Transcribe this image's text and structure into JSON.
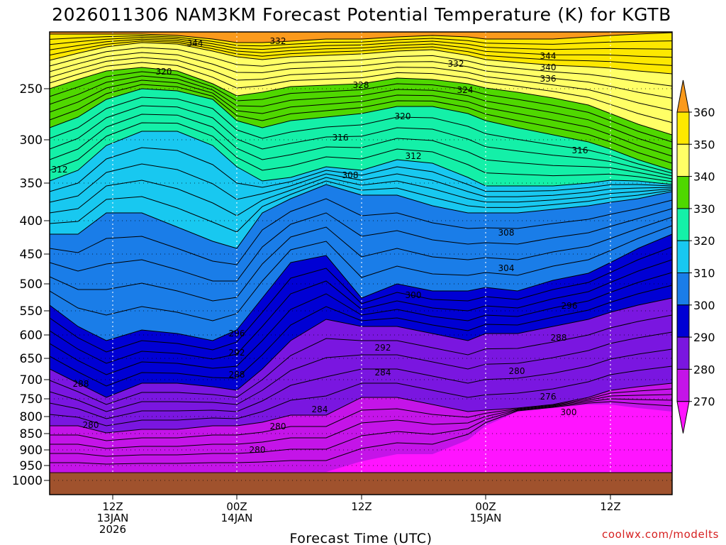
{
  "chart_data": {
    "type": "contour",
    "title": "2026011306 NAM3KM Forecast Potential Temperature (K) for KGTB",
    "xlabel": "Forecast Time (UTC)",
    "ylabel": "",
    "credit": "coolwx.com/modelts",
    "y_scale": "log-pressure",
    "y_ticks": [
      "250",
      "300",
      "350",
      "400",
      "450",
      "500",
      "550",
      "600",
      "650",
      "700",
      "750",
      "800",
      "850",
      "900",
      "950",
      "1000"
    ],
    "x_ticks": [
      {
        "lines": [
          "12Z",
          "13JAN",
          "2026"
        ]
      },
      {
        "lines": [
          "00Z",
          "14JAN"
        ]
      },
      {
        "lines": [
          "12Z"
        ]
      },
      {
        "lines": [
          "00Z",
          "15JAN"
        ]
      },
      {
        "lines": [
          "12Z"
        ]
      }
    ],
    "grid": true,
    "colorbar": {
      "placement": "right",
      "units": "K",
      "ticks": [
        "360",
        "350",
        "340",
        "330",
        "320",
        "310",
        "300",
        "290",
        "280",
        "270"
      ],
      "colors": [
        "#fb9a1c",
        "#fde800",
        "#ffff66",
        "#4fd800",
        "#14f0a8",
        "#18c8f0",
        "#1a7de8",
        "#0000d4",
        "#7a16e0",
        "#c414e8",
        "#ff14ff"
      ]
    },
    "contour_labels": [
      "344",
      "332",
      "320",
      "344",
      "340",
      "336",
      "332",
      "328",
      "324",
      "320",
      "316",
      "316",
      "312",
      "312",
      "308",
      "308",
      "304",
      "300",
      "296",
      "292",
      "288",
      "284",
      "280",
      "276",
      "300",
      "296",
      "292",
      "288",
      "284",
      "280",
      "288",
      "280"
    ]
  }
}
